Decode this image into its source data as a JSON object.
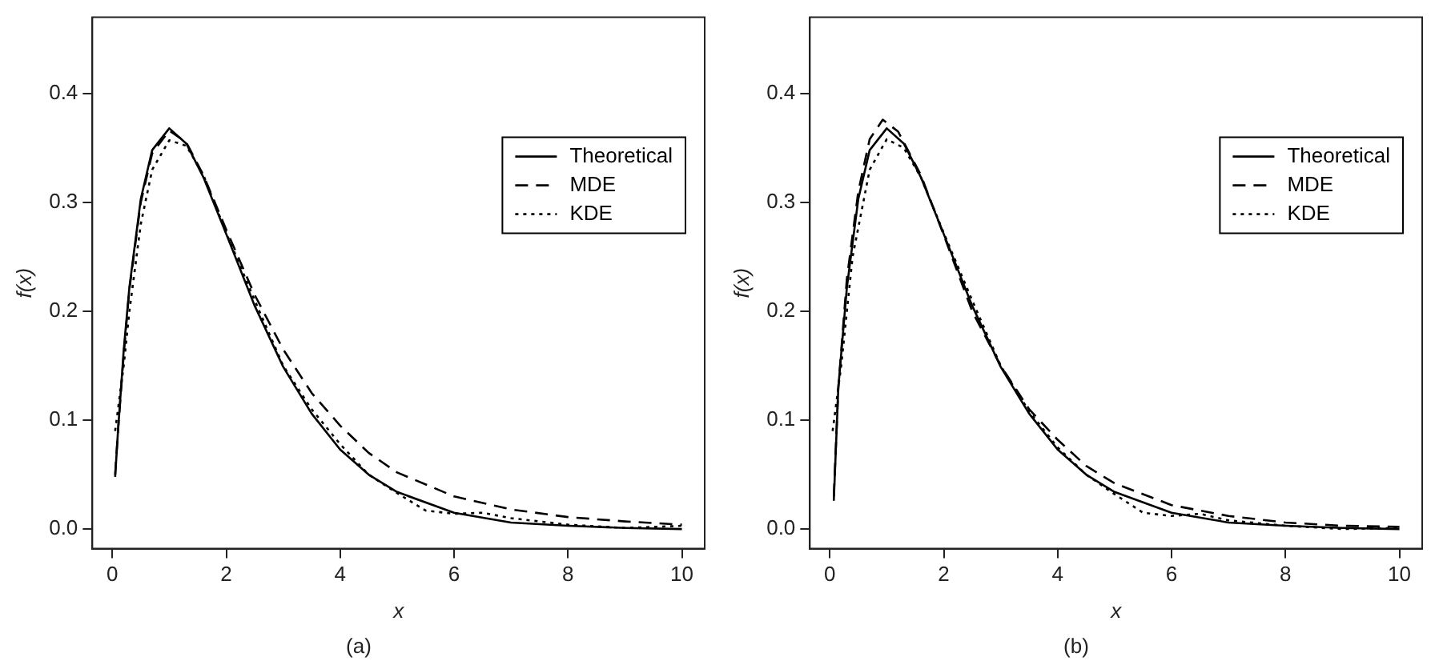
{
  "chart_data": [
    {
      "type": "line",
      "xlabel": "x",
      "ylabel": "f(x)",
      "annotations": [
        "(a)"
      ],
      "xlim": [
        -0.35,
        10.4
      ],
      "ylim": [
        -0.018,
        0.47
      ],
      "xticks": [
        0,
        2,
        4,
        6,
        8,
        10
      ],
      "yticks": [
        {
          "value": 0,
          "label": "0.0"
        },
        0.1,
        0.2,
        0.3,
        0.4
      ],
      "grid": false,
      "legend": "top right",
      "marker": "none",
      "series": [
        {
          "name": "Theoretical",
          "color": "#000000",
          "line_style": "solid",
          "x": [
            0.05,
            0.1,
            0.2,
            0.3,
            0.5,
            0.7,
            1,
            1.3,
            1.6,
            2,
            2.5,
            3,
            3.5,
            4,
            4.5,
            5,
            6,
            7,
            8,
            9,
            10
          ],
          "values": [
            0.048,
            0.09,
            0.164,
            0.222,
            0.303,
            0.348,
            0.368,
            0.354,
            0.323,
            0.271,
            0.205,
            0.149,
            0.106,
            0.073,
            0.05,
            0.034,
            0.015,
            0.006,
            0.003,
            0.001,
            0.0
          ]
        },
        {
          "name": "MDE",
          "color": "#000000",
          "line_style": "dashed",
          "x": [
            0.05,
            0.1,
            0.2,
            0.3,
            0.5,
            0.7,
            1,
            1.3,
            1.6,
            2,
            2.5,
            3,
            3.5,
            4,
            4.5,
            5,
            6,
            7,
            8,
            9,
            10
          ],
          "values": [
            0.05,
            0.09,
            0.16,
            0.22,
            0.3,
            0.345,
            0.366,
            0.355,
            0.325,
            0.275,
            0.215,
            0.165,
            0.125,
            0.095,
            0.07,
            0.052,
            0.03,
            0.018,
            0.011,
            0.007,
            0.004
          ]
        },
        {
          "name": "KDE",
          "color": "#000000",
          "line_style": "dotted",
          "x": [
            0.05,
            0.1,
            0.2,
            0.3,
            0.5,
            0.7,
            1,
            1.3,
            1.6,
            2,
            2.5,
            3,
            3.5,
            4,
            4.5,
            5,
            5.5,
            6,
            6.5,
            7,
            8,
            9,
            10
          ],
          "values": [
            0.09,
            0.11,
            0.15,
            0.2,
            0.28,
            0.33,
            0.357,
            0.352,
            0.325,
            0.272,
            0.21,
            0.15,
            0.11,
            0.078,
            0.05,
            0.033,
            0.017,
            0.014,
            0.015,
            0.01,
            0.004,
            0.001,
            0.003
          ]
        }
      ]
    },
    {
      "type": "line",
      "xlabel": "x",
      "ylabel": "f(x)",
      "annotations": [
        "(b)"
      ],
      "xlim": [
        -0.35,
        10.4
      ],
      "ylim": [
        -0.018,
        0.47
      ],
      "xticks": [
        0,
        2,
        4,
        6,
        8,
        10
      ],
      "yticks": [
        {
          "value": 0,
          "label": "0.0"
        },
        0.1,
        0.2,
        0.3,
        0.4
      ],
      "grid": false,
      "legend": "top right",
      "marker": "none",
      "series": [
        {
          "name": "Theoretical",
          "color": "#000000",
          "line_style": "solid",
          "x": [
            0.07,
            0.15,
            0.3,
            0.5,
            0.7,
            1,
            1.3,
            1.6,
            2,
            2.5,
            3,
            3.5,
            4,
            4.5,
            5,
            6,
            7,
            8,
            9,
            10
          ],
          "values": [
            0.026,
            0.13,
            0.222,
            0.303,
            0.348,
            0.368,
            0.354,
            0.323,
            0.271,
            0.205,
            0.149,
            0.106,
            0.073,
            0.05,
            0.034,
            0.015,
            0.006,
            0.003,
            0.001,
            0.0
          ]
        },
        {
          "name": "MDE",
          "color": "#000000",
          "line_style": "dashed",
          "x": [
            0.07,
            0.15,
            0.3,
            0.5,
            0.7,
            0.93,
            1.2,
            1.6,
            2,
            2.5,
            3,
            3.5,
            4,
            4.5,
            5,
            6,
            7,
            8,
            9,
            10
          ],
          "values": [
            0.03,
            0.13,
            0.23,
            0.31,
            0.358,
            0.376,
            0.365,
            0.325,
            0.27,
            0.2,
            0.15,
            0.11,
            0.082,
            0.058,
            0.042,
            0.022,
            0.012,
            0.006,
            0.003,
            0.002
          ]
        },
        {
          "name": "KDE",
          "color": "#000000",
          "line_style": "dotted",
          "x": [
            0.05,
            0.1,
            0.2,
            0.4,
            0.7,
            1,
            1.3,
            1.6,
            2,
            2.5,
            3,
            3.5,
            4,
            4.5,
            5,
            5.5,
            6,
            6.5,
            7,
            8,
            9,
            10
          ],
          "values": [
            0.09,
            0.11,
            0.15,
            0.25,
            0.33,
            0.358,
            0.35,
            0.323,
            0.272,
            0.21,
            0.15,
            0.108,
            0.075,
            0.05,
            0.032,
            0.015,
            0.012,
            0.014,
            0.008,
            0.003,
            0.0,
            0.001
          ]
        }
      ]
    }
  ]
}
